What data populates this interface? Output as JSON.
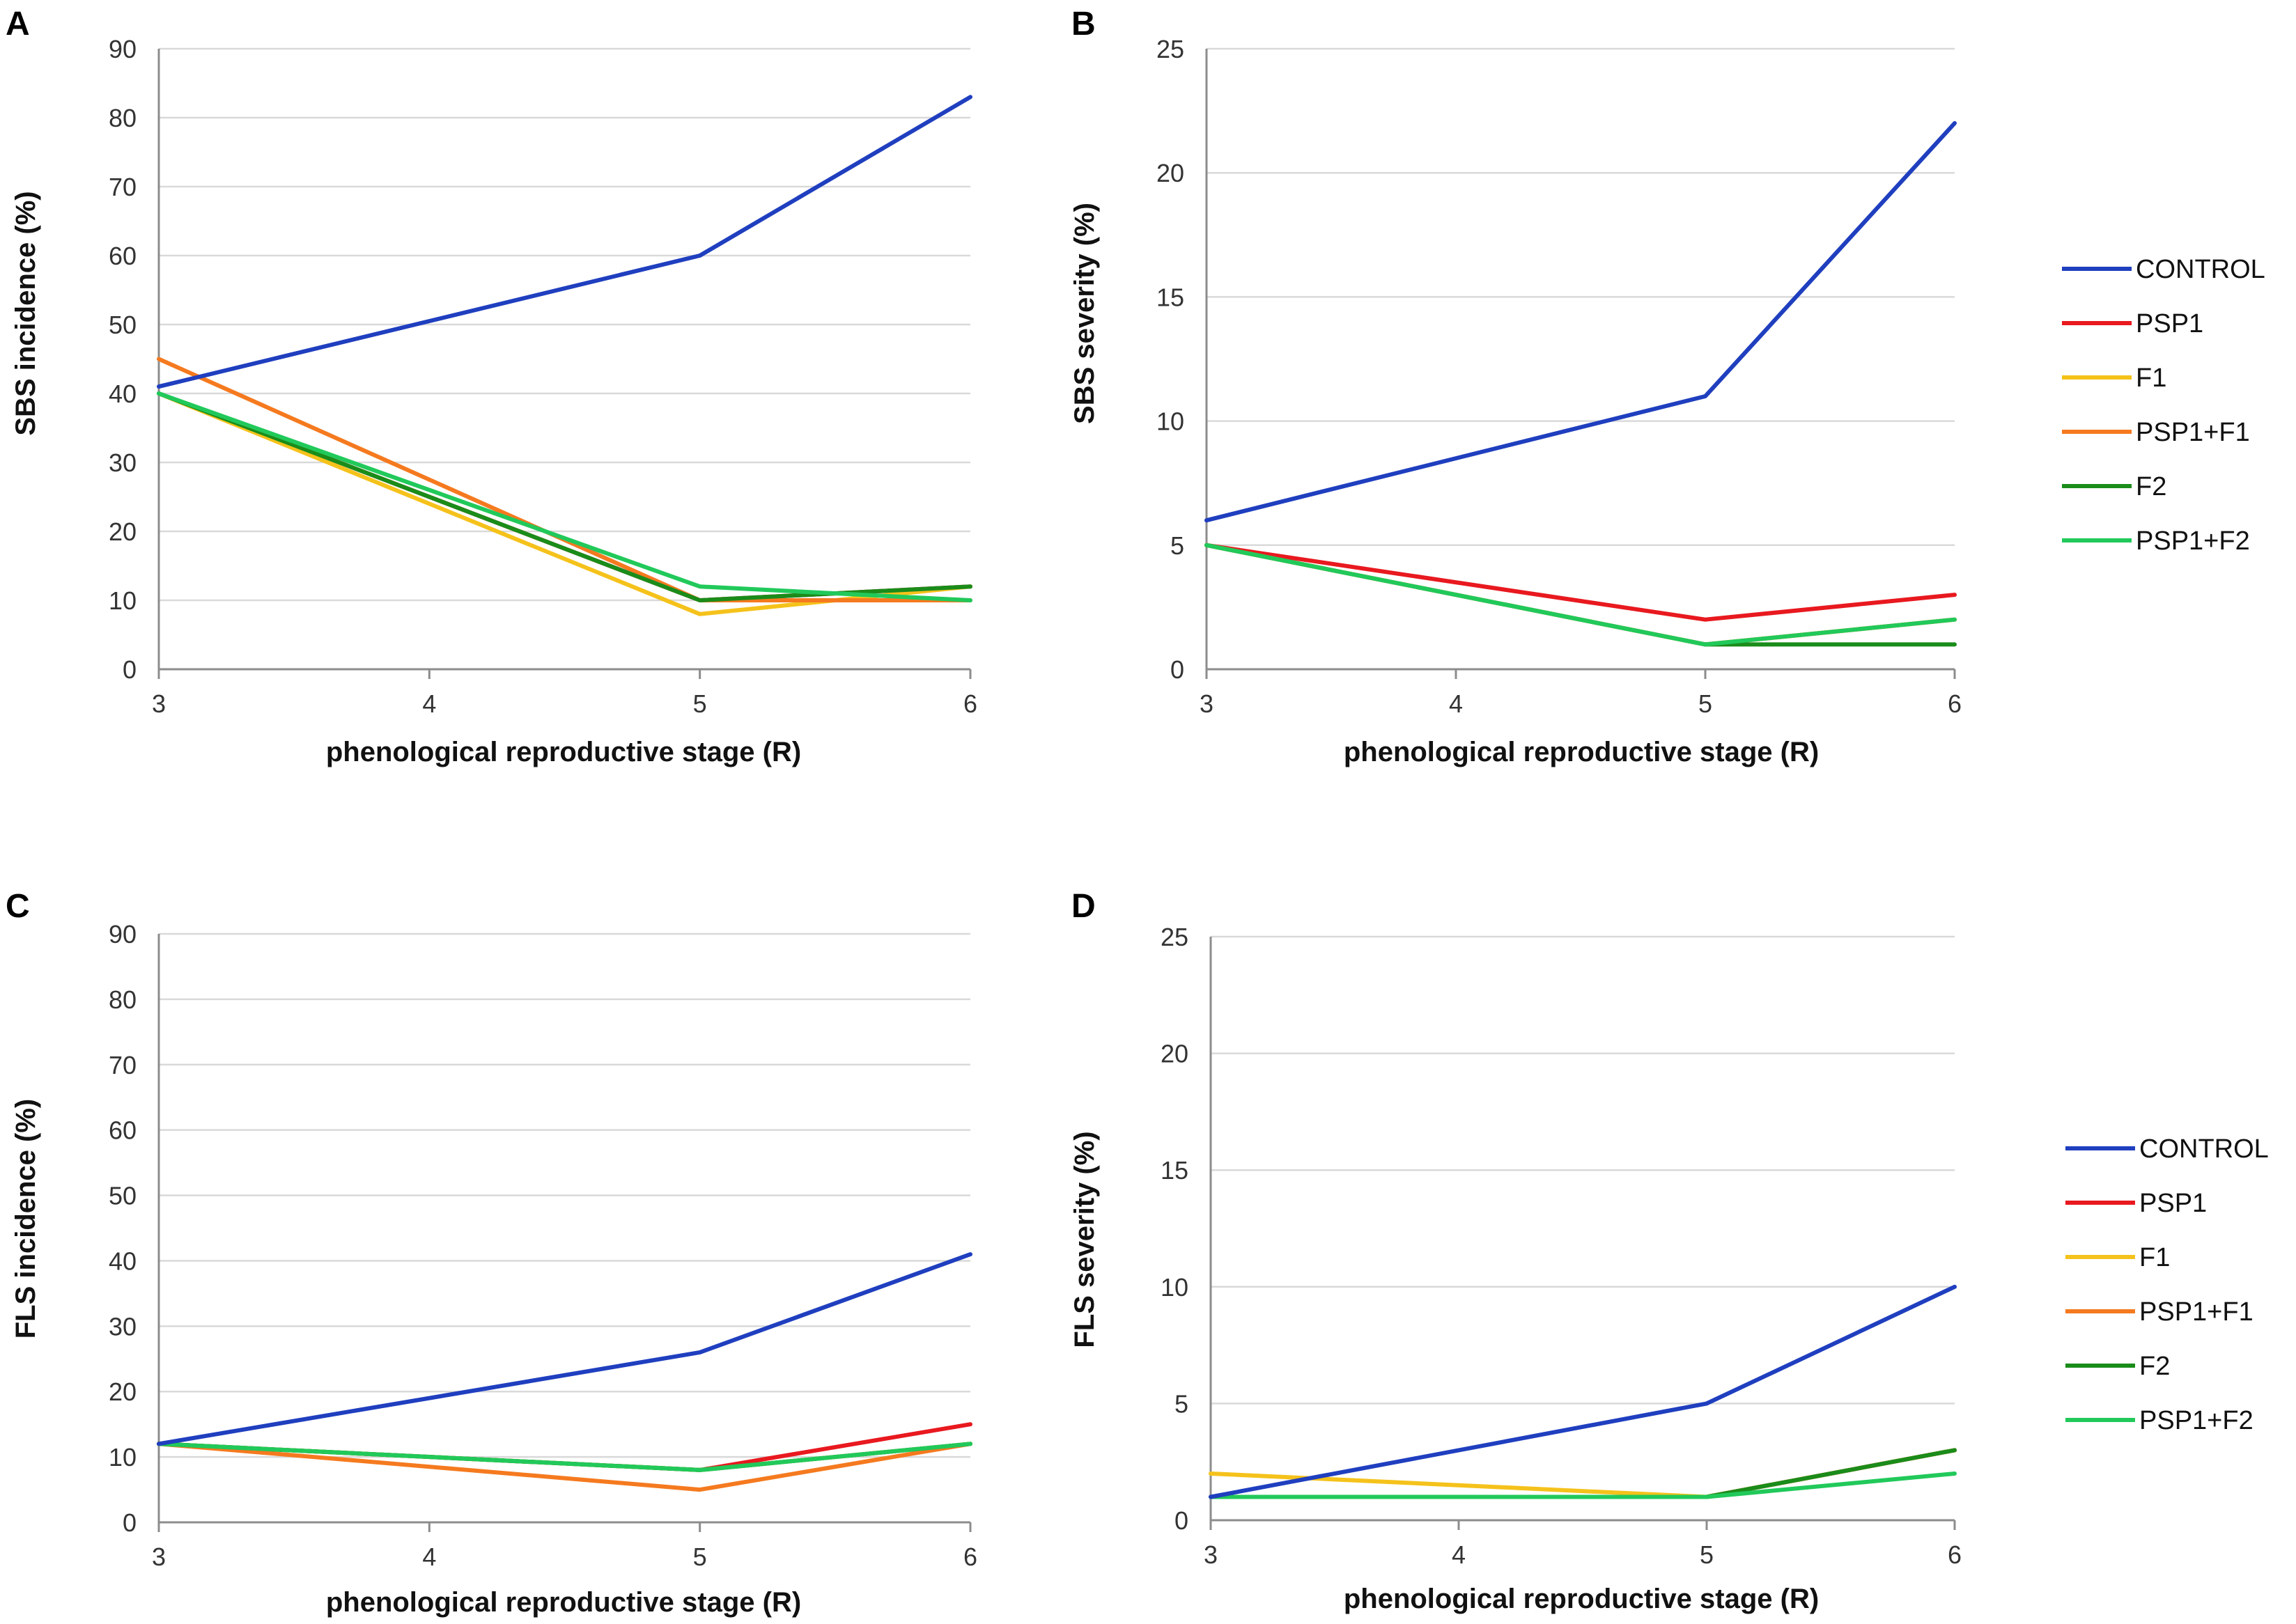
{
  "colors": {
    "CONTROL": "#1f3fbf",
    "PSP1": "#e8191f",
    "F1": "#f5c21b",
    "PSP1+F1": "#f57a1f",
    "F2": "#1a8c1a",
    "PSP1+F2": "#21c95a"
  },
  "chart_data": [
    {
      "panel": "A",
      "type": "line",
      "title": "",
      "xlabel": "phenological reproductive stage (R)",
      "ylabel": "SBS incidence (%)",
      "x": [
        3,
        4,
        5,
        6
      ],
      "xticks": [
        "3",
        "4",
        "5",
        "6"
      ],
      "ylim": [
        0,
        90
      ],
      "yticks": [
        "0",
        "10",
        "20",
        "30",
        "40",
        "50",
        "60",
        "70",
        "80",
        "90"
      ],
      "legend": false,
      "series": [
        {
          "name": "PSP1",
          "x": [
            3,
            5,
            6
          ],
          "values": [
            40,
            10,
            12
          ]
        },
        {
          "name": "F1",
          "x": [
            3,
            5,
            6
          ],
          "values": [
            40,
            8,
            12
          ]
        },
        {
          "name": "PSP1+F1",
          "x": [
            3,
            5,
            6
          ],
          "values": [
            45,
            10,
            10
          ]
        },
        {
          "name": "F2",
          "x": [
            3,
            5,
            6
          ],
          "values": [
            40,
            10,
            12
          ]
        },
        {
          "name": "PSP1+F2",
          "x": [
            3,
            5,
            6
          ],
          "values": [
            40,
            12,
            10
          ]
        },
        {
          "name": "CONTROL",
          "x": [
            3,
            5,
            6
          ],
          "values": [
            41,
            60,
            83
          ]
        }
      ]
    },
    {
      "panel": "B",
      "type": "line",
      "title": "",
      "xlabel": "phenological reproductive stage (R)",
      "ylabel": "SBS severity (%)",
      "x": [
        3,
        4,
        5,
        6
      ],
      "xticks": [
        "3",
        "4",
        "5",
        "6"
      ],
      "ylim": [
        0,
        25
      ],
      "yticks": [
        "0",
        "5",
        "10",
        "15",
        "20",
        "25"
      ],
      "legend": true,
      "legend_labels": [
        "CONTROL",
        "PSP1",
        "F1",
        "PSP1+F1",
        "F2",
        "PSP1+F2"
      ],
      "series": [
        {
          "name": "PSP1",
          "x": [
            3,
            5,
            6
          ],
          "values": [
            5,
            2,
            3
          ]
        },
        {
          "name": "F1",
          "x": [
            3,
            5,
            6
          ],
          "values": [
            5,
            1,
            2
          ]
        },
        {
          "name": "PSP1+F1",
          "x": [
            3,
            5,
            6
          ],
          "values": [
            5,
            1,
            2
          ]
        },
        {
          "name": "F2",
          "x": [
            3,
            5,
            6
          ],
          "values": [
            5,
            1,
            1
          ]
        },
        {
          "name": "PSP1+F2",
          "x": [
            3,
            5,
            6
          ],
          "values": [
            5,
            1,
            2
          ]
        },
        {
          "name": "CONTROL",
          "x": [
            3,
            5,
            6
          ],
          "values": [
            6,
            11,
            22
          ]
        }
      ]
    },
    {
      "panel": "C",
      "type": "line",
      "title": "",
      "xlabel": "phenological reproductive stage (R)",
      "ylabel": "FLS incidence (%)",
      "x": [
        3,
        4,
        5,
        6
      ],
      "xticks": [
        "3",
        "4",
        "5",
        "6"
      ],
      "ylim": [
        0,
        90
      ],
      "yticks": [
        "0",
        "10",
        "20",
        "30",
        "40",
        "50",
        "60",
        "70",
        "80",
        "90"
      ],
      "legend": false,
      "series": [
        {
          "name": "PSP1",
          "x": [
            3,
            5,
            6
          ],
          "values": [
            12,
            8,
            15
          ]
        },
        {
          "name": "F1",
          "x": [
            3,
            5,
            6
          ],
          "values": [
            12,
            8,
            12
          ]
        },
        {
          "name": "PSP1+F1",
          "x": [
            3,
            5,
            6
          ],
          "values": [
            12,
            5,
            12
          ]
        },
        {
          "name": "F2",
          "x": [
            3,
            5,
            6
          ],
          "values": [
            12,
            8,
            12
          ]
        },
        {
          "name": "PSP1+F2",
          "x": [
            3,
            5,
            6
          ],
          "values": [
            12,
            8,
            12
          ]
        },
        {
          "name": "CONTROL",
          "x": [
            3,
            5,
            6
          ],
          "values": [
            12,
            26,
            41
          ]
        }
      ]
    },
    {
      "panel": "D",
      "type": "line",
      "title": "",
      "xlabel": "phenological reproductive stage (R)",
      "ylabel": "FLS severity (%)",
      "x": [
        3,
        4,
        5,
        6
      ],
      "xticks": [
        "3",
        "4",
        "5",
        "6"
      ],
      "ylim": [
        0,
        25
      ],
      "yticks": [
        "0",
        "5",
        "10",
        "15",
        "20",
        "25"
      ],
      "legend": true,
      "legend_labels": [
        "CONTROL",
        "PSP1",
        "F1",
        "PSP1+F1",
        "F2",
        "PSP1+F2"
      ],
      "series": [
        {
          "name": "PSP1",
          "x": [
            3,
            5,
            6
          ],
          "values": [
            1,
            1,
            3
          ]
        },
        {
          "name": "F1",
          "x": [
            3,
            5,
            6
          ],
          "values": [
            2,
            1,
            3
          ]
        },
        {
          "name": "PSP1+F1",
          "x": [
            3,
            5,
            6
          ],
          "values": [
            1,
            1,
            3
          ]
        },
        {
          "name": "F2",
          "x": [
            3,
            5,
            6
          ],
          "values": [
            1,
            1,
            3
          ]
        },
        {
          "name": "PSP1+F2",
          "x": [
            3,
            5,
            6
          ],
          "values": [
            1,
            1,
            2
          ]
        },
        {
          "name": "CONTROL",
          "x": [
            3,
            5,
            6
          ],
          "values": [
            1,
            5,
            10
          ]
        }
      ]
    }
  ]
}
